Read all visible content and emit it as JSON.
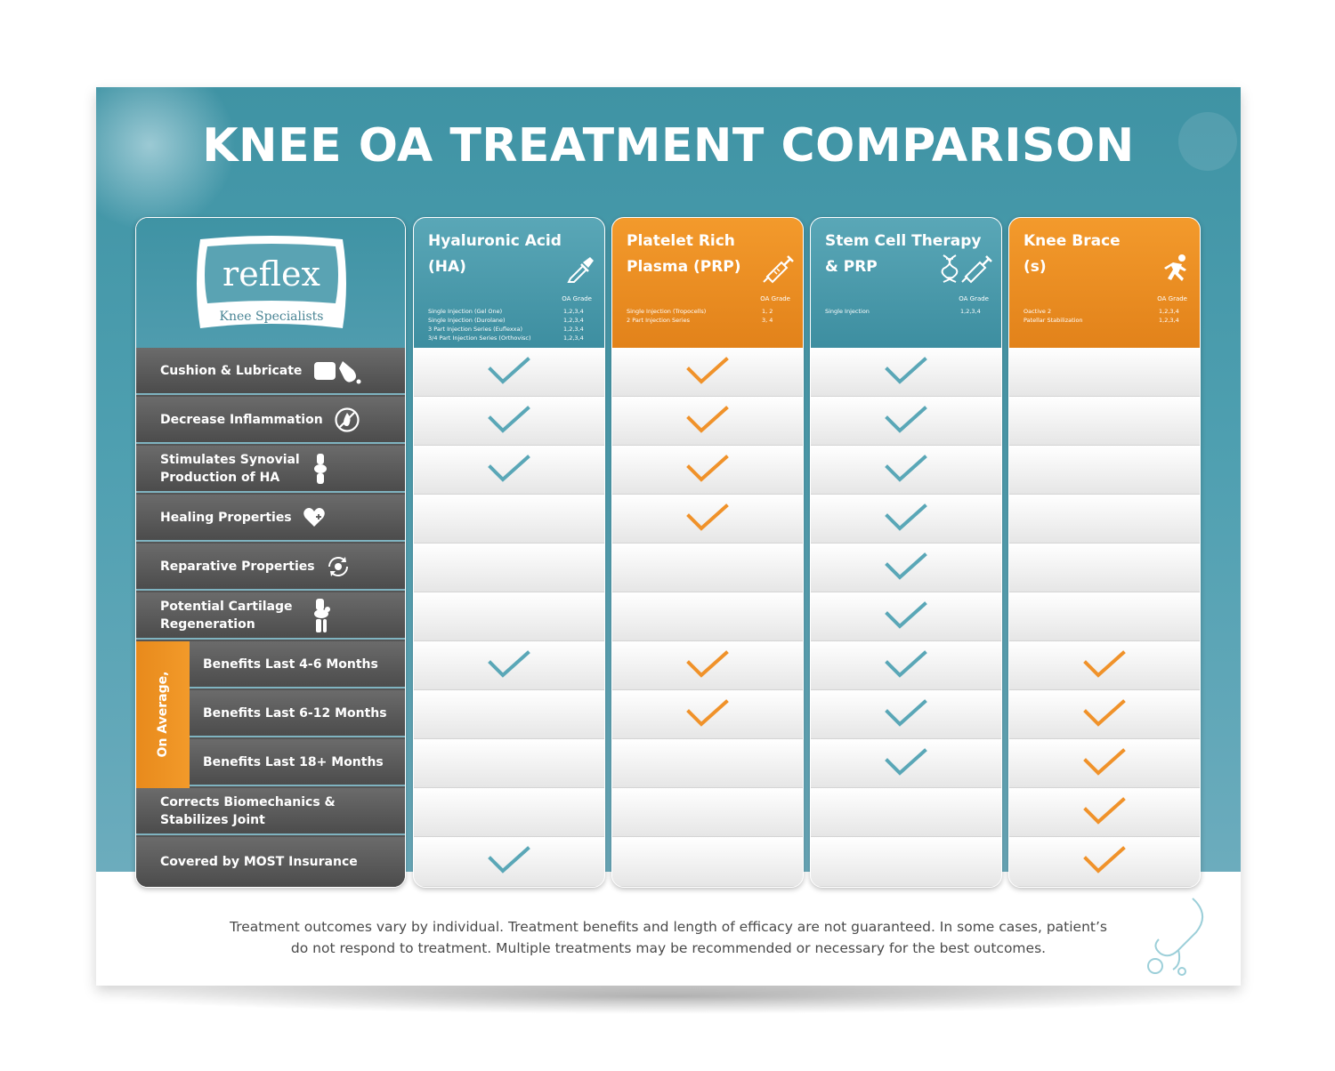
{
  "title": "KNEE OA TREATMENT COMPARISON",
  "logo": {
    "name": "reflex",
    "tagline": "Knee Specialists"
  },
  "colors": {
    "teal": "#5aa7b7",
    "orange": "#f0922a",
    "dark": "#555555"
  },
  "features": [
    {
      "label": "Cushion & Lubricate",
      "icon": "pillow-and-oil-drop-icon"
    },
    {
      "label": "Decrease Inflammation",
      "icon": "no-fire-icon"
    },
    {
      "label": "Stimulates Synovial Production of HA",
      "icon": "knee-joint-icon"
    },
    {
      "label": "Healing Properties",
      "icon": "heart-plus-icon"
    },
    {
      "label": "Reparative Properties",
      "icon": "gear-cycle-icon"
    },
    {
      "label": "Potential Cartilage Regeneration",
      "icon": "knee-bones-icon"
    },
    {
      "label": "Benefits Last 4-6 Months",
      "icon": ""
    },
    {
      "label": "Benefits Last 6-12 Months",
      "icon": ""
    },
    {
      "label": "Benefits Last 18+ Months",
      "icon": ""
    },
    {
      "label": "Corrects Biomechanics & Stabilizes Joint",
      "icon": ""
    },
    {
      "label": "Covered by MOST Insurance",
      "icon": ""
    }
  ],
  "on_average_label": "On Average,",
  "grade_header": "OA Grade",
  "treatments": [
    {
      "name": "Hyaluronic Acid (HA)",
      "theme": "teal",
      "icon": "dropper-icon",
      "options": [
        {
          "label": "Single Injection (Gel One)",
          "grade": "1,2,3,4"
        },
        {
          "label": "Single Injection (Durolane)",
          "grade": "1,2,3,4"
        },
        {
          "label": "3 Part Injection Series (Euflexxa)",
          "grade": "1,2,3,4"
        },
        {
          "label": "3/4 Part Injection Series (Orthovisc)",
          "grade": "1,2,3,4"
        }
      ],
      "checks": [
        true,
        true,
        true,
        false,
        false,
        false,
        true,
        false,
        false,
        false,
        true
      ]
    },
    {
      "name": "Platelet Rich Plasma (PRP)",
      "theme": "orange",
      "icon": "syringe-icon",
      "options": [
        {
          "label": "Single Injection (Tropocells)",
          "grade": "1, 2"
        },
        {
          "label": "2 Part Injection Series",
          "grade": "3, 4"
        }
      ],
      "checks": [
        true,
        true,
        true,
        true,
        false,
        false,
        true,
        true,
        false,
        false,
        false
      ]
    },
    {
      "name": "Stem Cell Therapy & PRP",
      "theme": "teal",
      "icon": "dna-syringe-icon",
      "options": [
        {
          "label": "Single Injection",
          "grade": "1,2,3,4"
        }
      ],
      "checks": [
        true,
        true,
        true,
        true,
        true,
        true,
        true,
        true,
        true,
        false,
        false
      ]
    },
    {
      "name": "Knee Brace (s)",
      "theme": "orange",
      "icon": "runner-icon",
      "options": [
        {
          "label": "Oactive 2",
          "grade": "1,2,3,4"
        },
        {
          "label": "Patellar Stabilization",
          "grade": "1,2,3,4"
        }
      ],
      "checks": [
        false,
        false,
        false,
        false,
        false,
        false,
        true,
        true,
        true,
        true,
        true
      ]
    }
  ],
  "footer": {
    "line1": "Treatment outcomes vary by individual. Treatment benefits and length of efficacy are not guaranteed. In some cases, patient’s",
    "line2": "do not respond to treatment. Multiple treatments may be recommended or necessary for the best outcomes."
  }
}
